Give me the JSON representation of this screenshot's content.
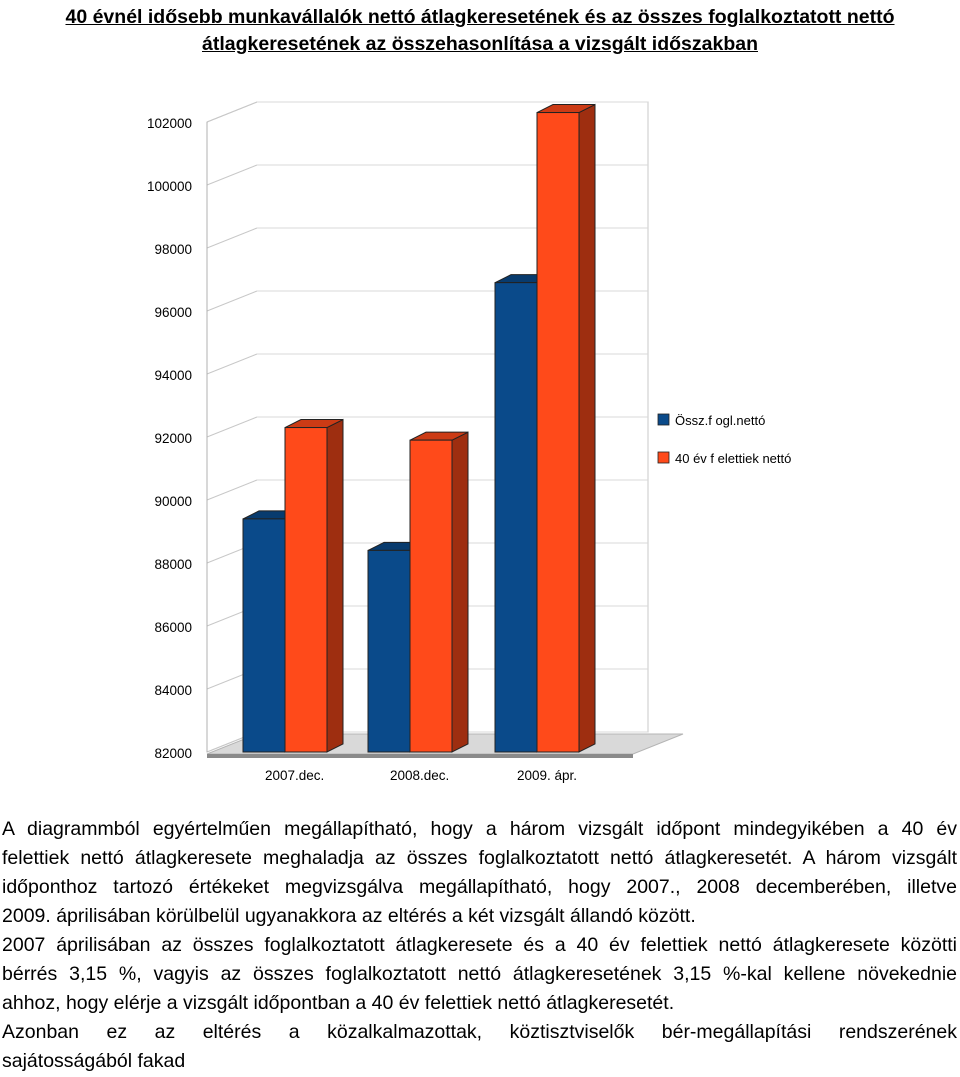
{
  "title": {
    "line1": "40 évnél idősebb munkavállalók nettó átlagkeresetének és az összes foglalkoztatott nettó",
    "line2": "átlagkeresetének az összehasonlítása a vizsgált időszakban"
  },
  "chart_data": {
    "type": "bar",
    "title": "",
    "xlabel": "",
    "ylabel": "",
    "ylim": [
      82000,
      102000
    ],
    "yticks": [
      102000,
      100000,
      98000,
      96000,
      94000,
      92000,
      90000,
      88000,
      86000,
      84000,
      82000
    ],
    "categories": [
      "2007.dec.",
      "2008.dec.",
      "2009. ápr."
    ],
    "series": [
      {
        "name": "Össz.f ogl.nettó",
        "color": "#0a4a8a",
        "values": [
          89400,
          88400,
          96900
        ]
      },
      {
        "name": "40 év f elettiek nettó",
        "color": "#ff4a1a",
        "values": [
          92300,
          91900,
          102300
        ]
      }
    ],
    "grid": true,
    "legend": "right",
    "style": "3d"
  },
  "paragraphs": [
    {
      "lines": [
        "A diagrammból egyértelműen megállapítható, hogy a három vizsgált időpont mindegyikében a 40 év",
        "felettiek nettó átlagkeresete meghaladja az összes foglalkoztatott nettó átlagkeresetét. A három vizsgált",
        "időponthoz tartozó értékeket megvizsgálva megállapítható, hogy 2007., 2008 decemberében, illetve",
        "2009. áprilisában körülbelül ugyanakkora az eltérés a két vizsgált állandó között."
      ]
    },
    {
      "lines": [
        "2007 áprilisában az összes foglalkoztatott átlagkeresete és a 40 év felettiek nettó átlagkeresete közötti",
        "bérrés 3,15 %, vagyis az összes foglalkoztatott nettó átlagkeresetének 3,15 %-kal kellene növekednie",
        "ahhoz, hogy elérje a vizsgált időpontban a 40 év felettiek nettó átlagkeresetét."
      ]
    },
    {
      "lines": [
        "Azonban ez az eltérés a közalkalmazottak, köztisztviselők bér-megállapítási rendszerének",
        "sajátosságából fakad"
      ]
    }
  ]
}
